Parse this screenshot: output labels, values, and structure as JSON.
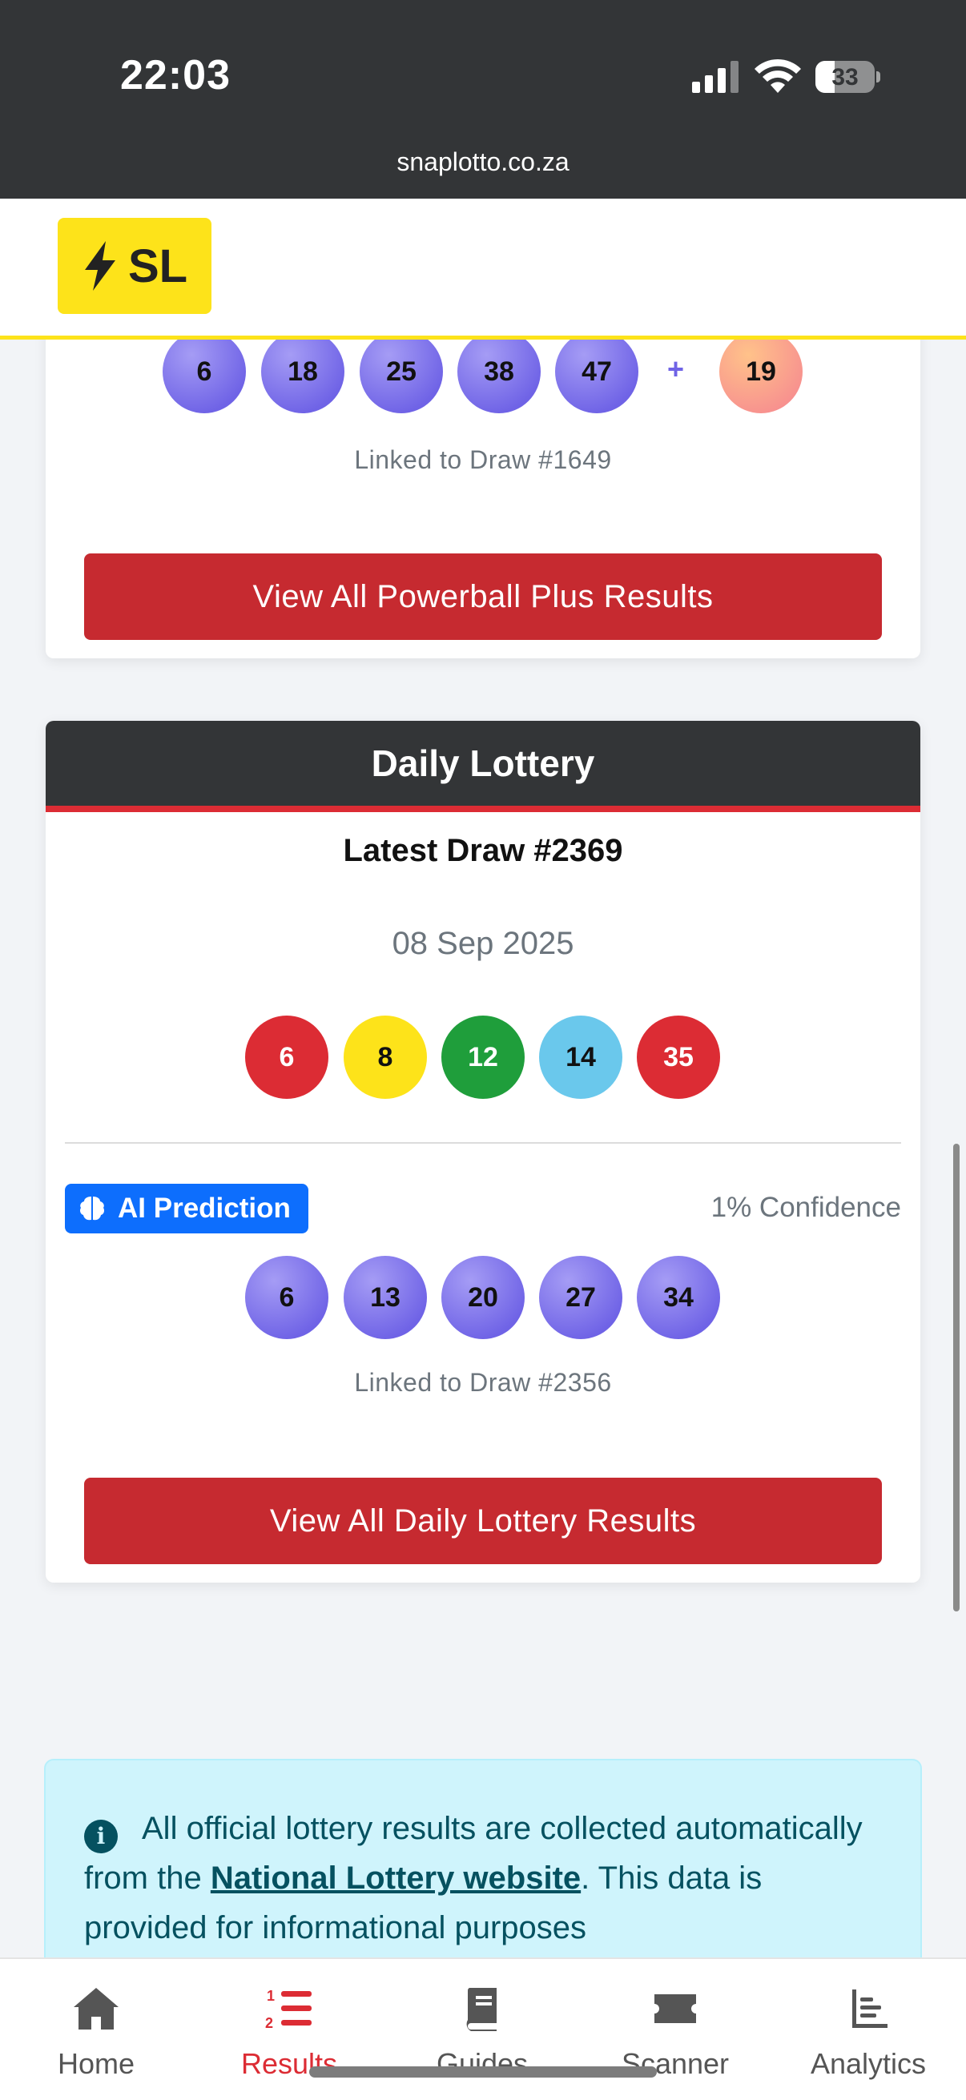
{
  "status_bar": {
    "time": "22:03",
    "battery_level": "33",
    "url": "snaplotto.co.za"
  },
  "header": {
    "logo_text": "SL",
    "logo_icon": "lightning-icon"
  },
  "powerball_card": {
    "numbers": [
      "6",
      "18",
      "25",
      "38",
      "47"
    ],
    "plus_symbol": "+",
    "bonus": "19",
    "linked": "Linked to Draw #1649",
    "button_label": "View All Powerball Plus Results"
  },
  "daily_card": {
    "title": "Daily Lottery",
    "draw_title": "Latest Draw #2369",
    "date": "08 Sep 2025",
    "balls": [
      {
        "value": "6",
        "color": "#dc2c34"
      },
      {
        "value": "8",
        "color": "#fde31a"
      },
      {
        "value": "12",
        "color": "#1f9e3b"
      },
      {
        "value": "14",
        "color": "#6ac8ec"
      },
      {
        "value": "35",
        "color": "#dc2c34"
      }
    ],
    "ai_label": "AI Prediction",
    "ai_icon": "brain-icon",
    "confidence": "1% Confidence",
    "prediction_numbers": [
      "6",
      "13",
      "20",
      "27",
      "34"
    ],
    "linked": "Linked to Draw #2356",
    "button_label": "View All Daily Lottery Results"
  },
  "info": {
    "text_before": "All official lottery results are collected automatically from the ",
    "link": "National Lottery website",
    "text_after": ". This data is provided for informational purposes"
  },
  "nav": {
    "items": [
      {
        "label": "Home",
        "icon": "home-icon"
      },
      {
        "label": "Results",
        "icon": "numbered-list-icon",
        "active": true
      },
      {
        "label": "Guides",
        "icon": "book-icon"
      },
      {
        "label": "Scanner",
        "icon": "ticket-icon"
      },
      {
        "label": "Analytics",
        "icon": "chart-icon"
      }
    ]
  },
  "colors": {
    "accent_red": "#dc2c34",
    "brand_yellow": "#fde31a",
    "dark_header": "#333537",
    "ai_blue": "#0d6efd",
    "prediction_purple": "#6f63e6"
  }
}
